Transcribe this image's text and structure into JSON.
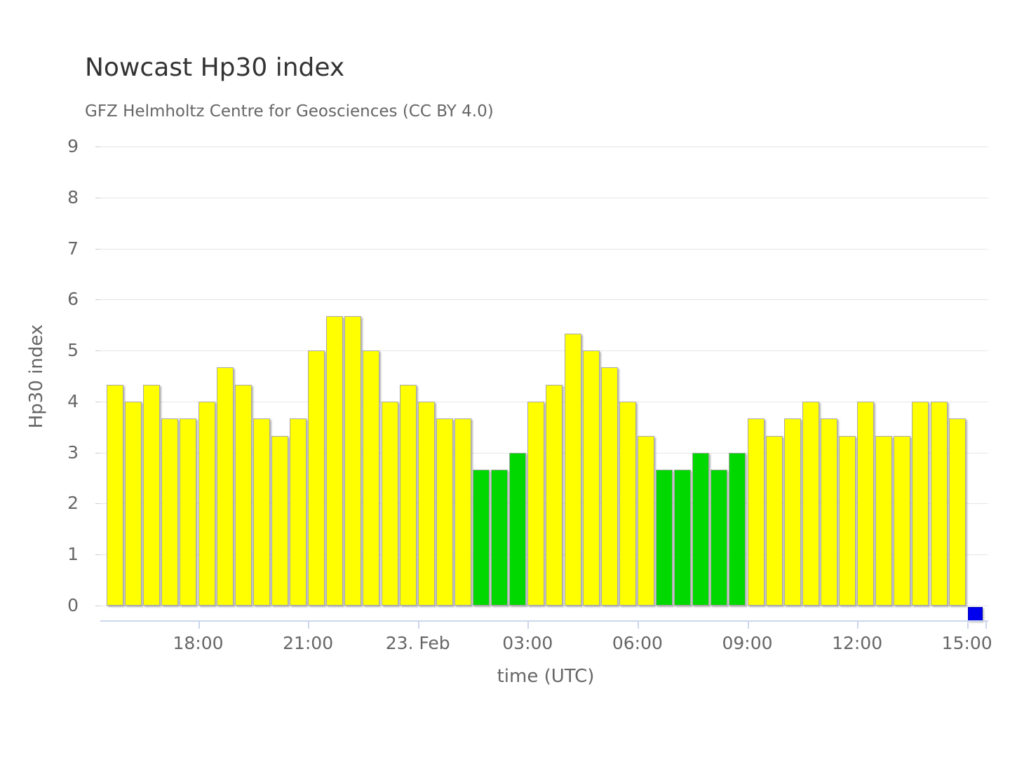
{
  "header": {
    "title": "Nowcast Hp30 index",
    "subtitle": "GFZ Helmholtz Centre for Geosciences (CC BY 4.0)"
  },
  "chart_data": {
    "type": "bar",
    "title": "Nowcast Hp30 index",
    "subtitle": "GFZ Helmholtz Centre for Geosciences (CC BY 4.0)",
    "xlabel": "time (UTC)",
    "ylabel": "Hp30 index",
    "ylim": [
      0,
      9
    ],
    "y_tick_labels": [
      "0",
      "1",
      "2",
      "3",
      "4",
      "5",
      "6",
      "7",
      "8",
      "9"
    ],
    "grid": "horizontal-only",
    "legend": "none",
    "bar_interval_minutes": 30,
    "bars": [
      {
        "t": "15:30",
        "v": 4.33,
        "c": "yellow"
      },
      {
        "t": "16:00",
        "v": 4.0,
        "c": "yellow"
      },
      {
        "t": "16:30",
        "v": 4.33,
        "c": "yellow"
      },
      {
        "t": "17:00",
        "v": 3.67,
        "c": "yellow"
      },
      {
        "t": "17:30",
        "v": 3.67,
        "c": "yellow"
      },
      {
        "t": "18:00",
        "v": 4.0,
        "c": "yellow"
      },
      {
        "t": "18:30",
        "v": 4.67,
        "c": "yellow"
      },
      {
        "t": "19:00",
        "v": 4.33,
        "c": "yellow"
      },
      {
        "t": "19:30",
        "v": 3.67,
        "c": "yellow"
      },
      {
        "t": "20:00",
        "v": 3.33,
        "c": "yellow"
      },
      {
        "t": "20:30",
        "v": 3.67,
        "c": "yellow"
      },
      {
        "t": "21:00",
        "v": 5.0,
        "c": "yellow"
      },
      {
        "t": "21:30",
        "v": 5.67,
        "c": "yellow"
      },
      {
        "t": "22:00",
        "v": 5.67,
        "c": "yellow"
      },
      {
        "t": "22:30",
        "v": 5.0,
        "c": "yellow"
      },
      {
        "t": "23:00",
        "v": 4.0,
        "c": "yellow"
      },
      {
        "t": "23:30",
        "v": 4.33,
        "c": "yellow"
      },
      {
        "t": "00:00",
        "v": 4.0,
        "c": "yellow"
      },
      {
        "t": "00:30",
        "v": 3.67,
        "c": "yellow"
      },
      {
        "t": "01:00",
        "v": 3.67,
        "c": "yellow"
      },
      {
        "t": "01:30",
        "v": 2.67,
        "c": "green"
      },
      {
        "t": "02:00",
        "v": 2.67,
        "c": "green"
      },
      {
        "t": "02:30",
        "v": 3.0,
        "c": "green"
      },
      {
        "t": "03:00",
        "v": 4.0,
        "c": "yellow"
      },
      {
        "t": "03:30",
        "v": 4.33,
        "c": "yellow"
      },
      {
        "t": "04:00",
        "v": 5.33,
        "c": "yellow"
      },
      {
        "t": "04:30",
        "v": 5.0,
        "c": "yellow"
      },
      {
        "t": "05:00",
        "v": 4.67,
        "c": "yellow"
      },
      {
        "t": "05:30",
        "v": 4.0,
        "c": "yellow"
      },
      {
        "t": "06:00",
        "v": 3.33,
        "c": "yellow"
      },
      {
        "t": "06:30",
        "v": 2.67,
        "c": "green"
      },
      {
        "t": "07:00",
        "v": 2.67,
        "c": "green"
      },
      {
        "t": "07:30",
        "v": 3.0,
        "c": "green"
      },
      {
        "t": "08:00",
        "v": 2.67,
        "c": "green"
      },
      {
        "t": "08:30",
        "v": 3.0,
        "c": "green"
      },
      {
        "t": "09:00",
        "v": 3.67,
        "c": "yellow"
      },
      {
        "t": "09:30",
        "v": 3.33,
        "c": "yellow"
      },
      {
        "t": "10:00",
        "v": 3.67,
        "c": "yellow"
      },
      {
        "t": "10:30",
        "v": 4.0,
        "c": "yellow"
      },
      {
        "t": "11:00",
        "v": 3.67,
        "c": "yellow"
      },
      {
        "t": "11:30",
        "v": 3.33,
        "c": "yellow"
      },
      {
        "t": "12:00",
        "v": 4.0,
        "c": "yellow"
      },
      {
        "t": "12:30",
        "v": 3.33,
        "c": "yellow"
      },
      {
        "t": "13:00",
        "v": 3.33,
        "c": "yellow"
      },
      {
        "t": "13:30",
        "v": 4.0,
        "c": "yellow"
      },
      {
        "t": "14:00",
        "v": 4.0,
        "c": "yellow"
      },
      {
        "t": "14:30",
        "v": 3.67,
        "c": "yellow"
      }
    ],
    "current_marker": {
      "t": "15:00",
      "v": 0,
      "c": "blue"
    },
    "x_ticks": [
      {
        "label": "18:00",
        "slot": 5
      },
      {
        "label": "21:00",
        "slot": 11
      },
      {
        "label": "23. Feb",
        "slot": 17
      },
      {
        "label": "03:00",
        "slot": 23
      },
      {
        "label": "06:00",
        "slot": 29
      },
      {
        "label": "09:00",
        "slot": 35
      },
      {
        "label": "12:00",
        "slot": 41
      },
      {
        "label": "15:00",
        "slot": 47
      },
      {
        "label": "",
        "slot": 48
      }
    ]
  },
  "colors": {
    "yellow": "#ffff00",
    "green": "#00d800",
    "blue": "#0000ee",
    "grid": "#e6e6e6",
    "axis_line": "#ccd6eb",
    "axis_text": "#666666",
    "title_text": "#333333",
    "bar_border": "#a8a8a8"
  }
}
